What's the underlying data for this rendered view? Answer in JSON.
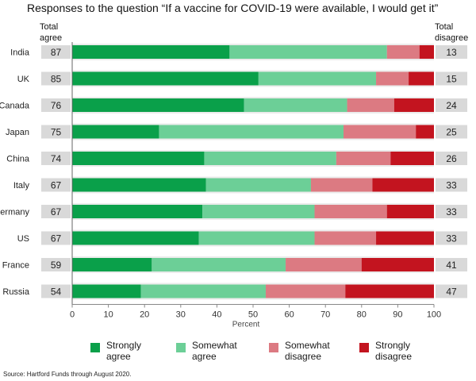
{
  "chart_data": {
    "type": "bar",
    "orientation": "horizontal",
    "stacked": true,
    "title": "Responses to the question “If a vaccine for COVID-19 were available, I would get it”",
    "left_header": "Total agree",
    "right_header": "Total disagree",
    "xlabel": "Percent",
    "xlim": [
      0,
      100
    ],
    "x_ticks": [
      0,
      10,
      20,
      30,
      40,
      50,
      60,
      70,
      80,
      90,
      100
    ],
    "categories": [
      "India",
      "UK",
      "Canada",
      "Japan",
      "China",
      "Italy",
      "Germany",
      "US",
      "France",
      "Russia"
    ],
    "total_agree": [
      87,
      85,
      76,
      75,
      74,
      67,
      67,
      67,
      59,
      54
    ],
    "total_disagree": [
      13,
      15,
      24,
      25,
      26,
      33,
      33,
      33,
      41,
      47
    ],
    "series": [
      {
        "name": "Strongly agree",
        "color": "#0aa04a",
        "values": [
          43.5,
          51.5,
          47.5,
          24,
          36.5,
          37,
          36,
          35,
          22,
          19
        ]
      },
      {
        "name": "Somewhat agree",
        "color": "#6ccf97",
        "values": [
          43.5,
          32.5,
          28.5,
          51,
          36.5,
          29,
          31,
          32,
          37,
          34.5
        ]
      },
      {
        "name": "Somewhat disagree",
        "color": "#dc7a82",
        "values": [
          9,
          9,
          13,
          20,
          15,
          17,
          20,
          17,
          21,
          22
        ]
      },
      {
        "name": "Strongly disagree",
        "color": "#c3141f",
        "values": [
          4,
          7,
          11,
          5,
          12,
          17,
          13,
          16,
          20,
          24.5
        ]
      }
    ],
    "legend_position": "bottom",
    "grid": false
  },
  "legend": {
    "items": [
      {
        "line1": "Strongly",
        "line2": "agree",
        "color": "#0aa04a"
      },
      {
        "line1": "Somewhat",
        "line2": "agree",
        "color": "#6ccf97"
      },
      {
        "line1": "Somewhat",
        "line2": "disagree",
        "color": "#dc7a82"
      },
      {
        "line1": "Strongly",
        "line2": "disagree",
        "color": "#c3141f"
      }
    ]
  },
  "source": "Source: Hartford Funds through August 2020."
}
